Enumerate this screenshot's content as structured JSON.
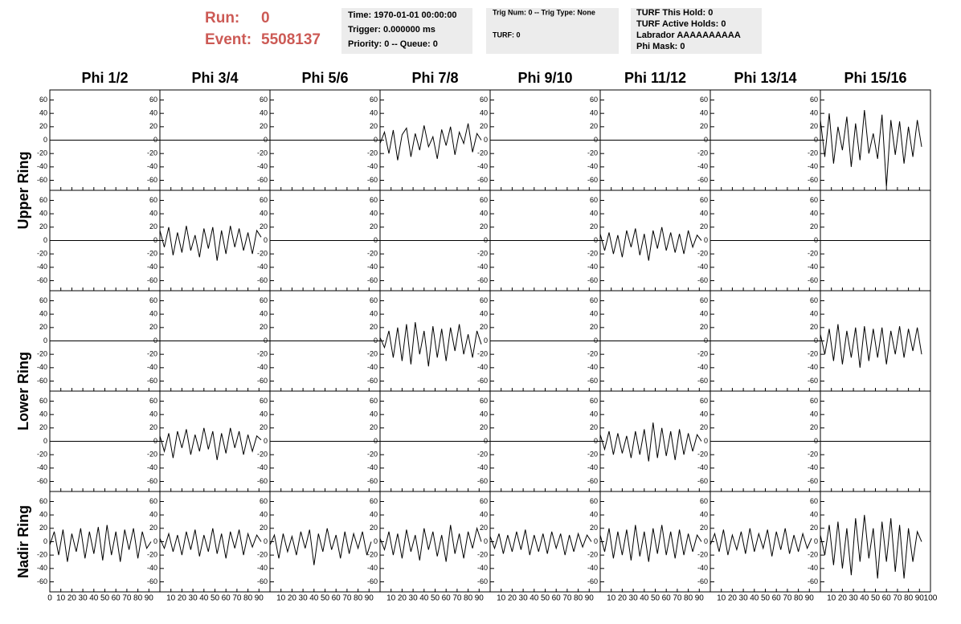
{
  "header": {
    "run_label": "Run:",
    "run": 0,
    "event_label": "Event:",
    "event": 5508137,
    "box1": [
      "Time: 1970-01-01 00:00:00",
      "Trigger: 0.000000 ms",
      "Priority: 0 -- Queue: 0"
    ],
    "box2": [
      "Trig Num: 0 -- Trig Type: None",
      "TURF: 0"
    ],
    "box3": [
      "TURF This Hold: 0",
      "TURF Active Holds: 0",
      "Labrador AAAAAAAAAA",
      "Phi Mask: 0"
    ]
  },
  "chart_data": {
    "type": "line",
    "color": "#000000",
    "columns": [
      "Phi 1/2",
      "Phi 3/4",
      "Phi 5/6",
      "Phi 7/8",
      "Phi 9/10",
      "Phi 11/12",
      "Phi 13/14",
      "Phi 15/16"
    ],
    "row_labels": [
      "Upper Ring",
      "Lower Ring",
      "Nadir Ring"
    ],
    "xlim": [
      0,
      100
    ],
    "xticks": [
      0,
      10,
      20,
      30,
      40,
      50,
      60,
      70,
      80,
      90,
      100
    ],
    "ylim": [
      -75,
      75
    ],
    "yticks": [
      60,
      40,
      20,
      0,
      -20,
      -40,
      -60
    ],
    "x": [
      0,
      4,
      8,
      12,
      16,
      20,
      24,
      28,
      32,
      36,
      40,
      44,
      48,
      52,
      56,
      60,
      64,
      68,
      72,
      76,
      80,
      84,
      88,
      92
    ],
    "panels": [
      [
        null,
        null,
        null,
        [
          -5,
          12,
          -20,
          15,
          -30,
          8,
          18,
          -25,
          10,
          -15,
          22,
          -10,
          5,
          -28,
          16,
          -8,
          20,
          -22,
          12,
          -5,
          25,
          -18,
          10,
          0
        ],
        null,
        null,
        null,
        [
          30,
          -25,
          40,
          -35,
          20,
          -15,
          35,
          -40,
          25,
          -30,
          45,
          -20,
          10,
          -28,
          38,
          -70,
          30,
          -22,
          28,
          -35,
          20,
          -25,
          30,
          -10
        ]
      ],
      [
        null,
        [
          15,
          -10,
          20,
          -22,
          12,
          -18,
          22,
          -15,
          8,
          -25,
          18,
          -12,
          20,
          -30,
          15,
          -20,
          22,
          -10,
          18,
          -15,
          12,
          -20,
          15,
          5
        ],
        null,
        null,
        null,
        [
          10,
          -15,
          12,
          -20,
          8,
          -25,
          15,
          -10,
          18,
          -22,
          10,
          -30,
          15,
          -12,
          20,
          -15,
          12,
          -18,
          10,
          -20,
          15,
          -10,
          8,
          0
        ],
        null,
        null
      ],
      [
        null,
        null,
        null,
        [
          5,
          -10,
          15,
          -25,
          20,
          -30,
          25,
          -35,
          28,
          -20,
          15,
          -38,
          22,
          -25,
          18,
          -30,
          20,
          -15,
          25,
          -20,
          10,
          -25,
          15,
          -5
        ],
        null,
        null,
        null,
        [
          10,
          -20,
          18,
          -30,
          25,
          -35,
          15,
          -25,
          20,
          -40,
          22,
          -30,
          18,
          -25,
          20,
          -35,
          15,
          -20,
          22,
          -25,
          18,
          -15,
          20,
          -20
        ]
      ],
      [
        null,
        [
          8,
          -15,
          12,
          -25,
          15,
          -10,
          18,
          -20,
          10,
          -15,
          20,
          -12,
          15,
          -28,
          12,
          -18,
          20,
          -10,
          15,
          -20,
          10,
          -15,
          8,
          2
        ],
        null,
        null,
        null,
        [
          10,
          -12,
          15,
          -20,
          12,
          -18,
          8,
          -25,
          15,
          -20,
          18,
          -30,
          28,
          -25,
          20,
          -22,
          15,
          -28,
          18,
          -20,
          12,
          -15,
          10,
          0
        ],
        null,
        null
      ],
      [
        [
          -5,
          15,
          -20,
          18,
          -30,
          12,
          -15,
          20,
          -25,
          15,
          -18,
          22,
          -28,
          25,
          -20,
          15,
          -30,
          18,
          -12,
          20,
          -25,
          15,
          -10,
          0
        ],
        [
          5,
          -10,
          12,
          -15,
          10,
          -20,
          15,
          -12,
          18,
          -22,
          10,
          -15,
          20,
          -18,
          12,
          -25,
          15,
          -10,
          18,
          -20,
          12,
          -8,
          10,
          0
        ],
        [
          -5,
          10,
          -25,
          12,
          -15,
          8,
          -20,
          15,
          -10,
          18,
          -35,
          12,
          -15,
          20,
          -12,
          10,
          -25,
          15,
          -18,
          12,
          -10,
          15,
          -20,
          0
        ],
        [
          5,
          -12,
          15,
          -20,
          12,
          -25,
          18,
          -15,
          10,
          -28,
          20,
          -12,
          15,
          -22,
          10,
          -30,
          25,
          -18,
          12,
          -25,
          15,
          -10,
          20,
          0
        ],
        [
          8,
          -10,
          12,
          -18,
          10,
          -15,
          15,
          -12,
          18,
          -20,
          10,
          -15,
          12,
          -18,
          15,
          -10,
          12,
          -20,
          10,
          -15,
          12,
          -8,
          10,
          0
        ],
        [
          10,
          -15,
          20,
          -25,
          15,
          -20,
          18,
          -28,
          25,
          -22,
          15,
          -30,
          20,
          -18,
          25,
          -20,
          15,
          -25,
          18,
          -20,
          12,
          -15,
          10,
          0
        ],
        [
          -5,
          12,
          -15,
          18,
          -20,
          10,
          -12,
          15,
          -18,
          20,
          -15,
          12,
          -10,
          18,
          -22,
          15,
          -12,
          20,
          -18,
          10,
          -15,
          12,
          -10,
          5
        ],
        [
          10,
          -20,
          25,
          -35,
          30,
          -40,
          20,
          -50,
          35,
          -30,
          40,
          -25,
          20,
          -55,
          30,
          -30,
          35,
          -45,
          25,
          -55,
          20,
          -30,
          15,
          0
        ]
      ]
    ]
  }
}
